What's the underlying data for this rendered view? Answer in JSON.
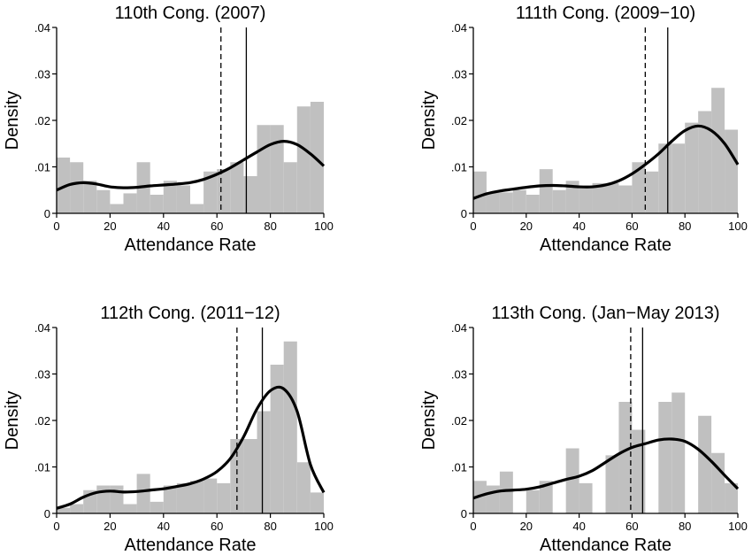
{
  "chart_data": [
    {
      "type": "bar",
      "title": "110th Cong. (2007)",
      "xlabel": "Attendance Rate",
      "ylabel": "Density",
      "xlim": [
        0,
        100
      ],
      "ylim": [
        0,
        0.04
      ],
      "xticks": [
        "0",
        "20",
        "40",
        "60",
        "80",
        "100"
      ],
      "yticks": [
        "0",
        ".01",
        ".02",
        ".03",
        ".04"
      ],
      "bin_width": 5,
      "bins_start": [
        0,
        5,
        10,
        15,
        20,
        25,
        30,
        35,
        40,
        45,
        50,
        55,
        60,
        65,
        70,
        75,
        80,
        85,
        90,
        95
      ],
      "values": [
        0.012,
        0.011,
        0.007,
        0.005,
        0.002,
        0.0043,
        0.011,
        0.004,
        0.007,
        0.006,
        0.002,
        0.009,
        0.0095,
        0.011,
        0.008,
        0.019,
        0.019,
        0.011,
        0.023,
        0.024
      ],
      "density_x": [
        0,
        5,
        10,
        15,
        20,
        25,
        30,
        35,
        40,
        45,
        50,
        55,
        60,
        65,
        70,
        75,
        80,
        85,
        90,
        95,
        100
      ],
      "density_y": [
        0.005,
        0.0062,
        0.0066,
        0.0063,
        0.0057,
        0.0055,
        0.0056,
        0.0059,
        0.0061,
        0.0063,
        0.0066,
        0.0073,
        0.0084,
        0.0098,
        0.0115,
        0.0132,
        0.0148,
        0.0155,
        0.0148,
        0.0128,
        0.0102
      ],
      "vlines": [
        {
          "x": 61.5,
          "style": "dashed"
        },
        {
          "x": 71,
          "style": "solid"
        }
      ]
    },
    {
      "type": "bar",
      "title": "111th Cong. (2009−10)",
      "xlabel": "Attendance Rate",
      "ylabel": "Density",
      "xlim": [
        0,
        100
      ],
      "ylim": [
        0,
        0.04
      ],
      "xticks": [
        "0",
        "20",
        "40",
        "60",
        "80",
        "100"
      ],
      "yticks": [
        "0",
        ".01",
        ".02",
        ".03",
        ".04"
      ],
      "bin_width": 5,
      "bins_start": [
        0,
        5,
        10,
        15,
        20,
        25,
        30,
        35,
        40,
        45,
        50,
        55,
        60,
        65,
        70,
        75,
        80,
        85,
        90,
        95
      ],
      "values": [
        0.009,
        0.0045,
        0.0045,
        0.005,
        0.004,
        0.0095,
        0.005,
        0.007,
        0.0055,
        0.0065,
        0.0065,
        0.006,
        0.011,
        0.009,
        0.015,
        0.015,
        0.0195,
        0.022,
        0.027,
        0.018
      ],
      "density_x": [
        0,
        5,
        10,
        15,
        20,
        25,
        30,
        35,
        40,
        45,
        50,
        55,
        60,
        65,
        70,
        75,
        80,
        85,
        90,
        95,
        100
      ],
      "density_y": [
        0.0032,
        0.0042,
        0.0048,
        0.0052,
        0.0056,
        0.0059,
        0.006,
        0.0059,
        0.0057,
        0.0057,
        0.0061,
        0.007,
        0.0085,
        0.0105,
        0.0128,
        0.0155,
        0.0178,
        0.0188,
        0.0178,
        0.015,
        0.0105
      ],
      "vlines": [
        {
          "x": 65,
          "style": "dashed"
        },
        {
          "x": 73.5,
          "style": "solid"
        }
      ]
    },
    {
      "type": "bar",
      "title": "112th Cong. (2011−12)",
      "xlabel": "Attendance Rate",
      "ylabel": "Density",
      "xlim": [
        0,
        100
      ],
      "ylim": [
        0,
        0.04
      ],
      "xticks": [
        "0",
        "20",
        "40",
        "60",
        "80",
        "100"
      ],
      "yticks": [
        "0",
        ".01",
        ".02",
        ".03",
        ".04"
      ],
      "bin_width": 5,
      "bins_start": [
        0,
        5,
        10,
        15,
        20,
        25,
        30,
        35,
        40,
        45,
        50,
        55,
        60,
        65,
        70,
        75,
        80,
        85,
        90,
        95
      ],
      "values": [
        0.0012,
        0.002,
        0.005,
        0.006,
        0.006,
        0.002,
        0.0085,
        0.0025,
        0.006,
        0.0065,
        0.007,
        0.0075,
        0.0065,
        0.016,
        0.016,
        0.022,
        0.032,
        0.037,
        0.011,
        0.0045
      ],
      "density_x": [
        0,
        5,
        10,
        15,
        20,
        25,
        30,
        35,
        40,
        45,
        50,
        55,
        60,
        65,
        70,
        75,
        80,
        85,
        90,
        95,
        100
      ],
      "density_y": [
        0.0011,
        0.002,
        0.0035,
        0.0045,
        0.0048,
        0.0046,
        0.0047,
        0.005,
        0.0053,
        0.0058,
        0.0064,
        0.0074,
        0.009,
        0.0118,
        0.0165,
        0.0225,
        0.0264,
        0.0268,
        0.022,
        0.0105,
        0.0045
      ],
      "vlines": [
        {
          "x": 67.5,
          "style": "dashed"
        },
        {
          "x": 77,
          "style": "solid"
        }
      ]
    },
    {
      "type": "bar",
      "title": "113th Cong. (Jan−May 2013)",
      "xlabel": "Attendance Rate",
      "ylabel": "Density",
      "xlim": [
        0,
        100
      ],
      "ylim": [
        0,
        0.04
      ],
      "xticks": [
        "0",
        "20",
        "40",
        "60",
        "80",
        "100"
      ],
      "yticks": [
        "0",
        ".01",
        ".02",
        ".03",
        ".04"
      ],
      "bin_width": 5,
      "bins_start": [
        0,
        5,
        10,
        15,
        20,
        25,
        30,
        35,
        40,
        45,
        50,
        55,
        60,
        65,
        70,
        75,
        80,
        85,
        90,
        95
      ],
      "values": [
        0.007,
        0.006,
        0.009,
        0,
        0.005,
        0.007,
        0,
        0.014,
        0.0065,
        0,
        0.0125,
        0.024,
        0.018,
        0,
        0.024,
        0.026,
        0,
        0.021,
        0.013,
        0.0065
      ],
      "density_x": [
        0,
        5,
        10,
        15,
        20,
        25,
        30,
        35,
        40,
        45,
        50,
        55,
        60,
        65,
        70,
        75,
        80,
        85,
        90,
        95,
        100
      ],
      "density_y": [
        0.0033,
        0.0042,
        0.0048,
        0.005,
        0.0052,
        0.0057,
        0.0065,
        0.0073,
        0.008,
        0.0092,
        0.011,
        0.0128,
        0.0142,
        0.015,
        0.0158,
        0.016,
        0.0155,
        0.0138,
        0.0112,
        0.0082,
        0.0053
      ],
      "vlines": [
        {
          "x": 59.5,
          "style": "dashed"
        },
        {
          "x": 64,
          "style": "solid"
        }
      ]
    }
  ],
  "colors": {
    "bars": "#c0c0c0",
    "density_line": "#000000",
    "vlines": "#000000",
    "axes": "#000000"
  }
}
